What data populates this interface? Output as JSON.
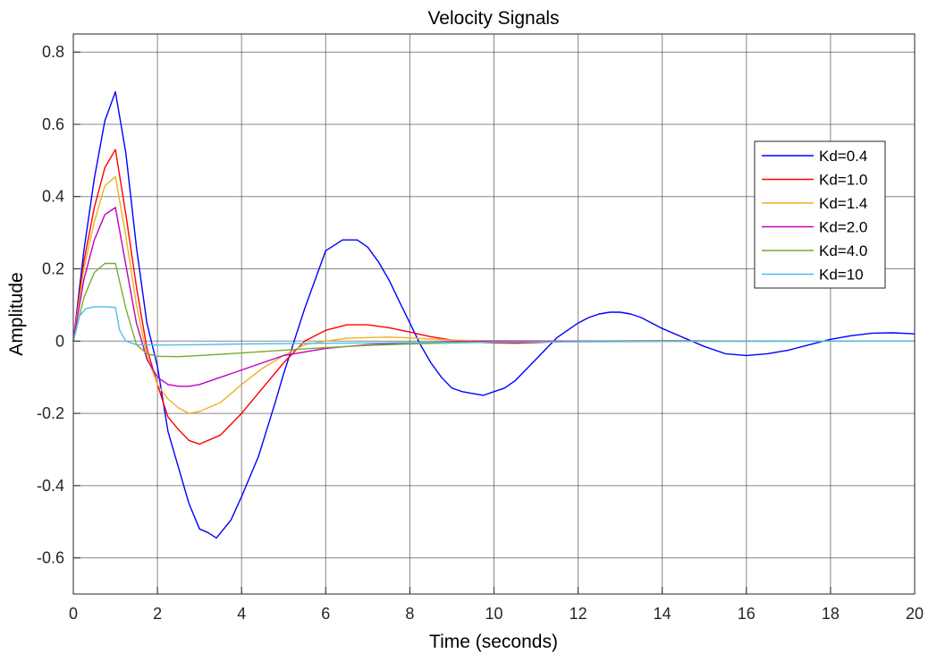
{
  "chart_data": {
    "type": "line",
    "title": "Velocity Signals",
    "xlabel": "Time (seconds)",
    "ylabel": "Amplitude",
    "xlim": [
      0,
      20
    ],
    "ylim": [
      -0.7,
      0.85
    ],
    "xticks": [
      0,
      2,
      4,
      6,
      8,
      10,
      12,
      14,
      16,
      18,
      20
    ],
    "yticks": [
      -0.6,
      -0.4,
      -0.2,
      0,
      0.2,
      0.4,
      0.6,
      0.8
    ],
    "grid": true,
    "legend_position": "top-right",
    "series": [
      {
        "name": "Kd=0.4",
        "color": "#0000ff",
        "points": [
          [
            0,
            0
          ],
          [
            0.25,
            0.25
          ],
          [
            0.5,
            0.45
          ],
          [
            0.75,
            0.61
          ],
          [
            1.0,
            0.69
          ],
          [
            1.25,
            0.52
          ],
          [
            1.5,
            0.26
          ],
          [
            1.75,
            0.05
          ],
          [
            2.0,
            -0.07
          ],
          [
            2.25,
            -0.25
          ],
          [
            2.5,
            -0.35
          ],
          [
            2.75,
            -0.45
          ],
          [
            3.0,
            -0.52
          ],
          [
            3.2,
            -0.53
          ],
          [
            3.4,
            -0.545
          ],
          [
            3.75,
            -0.495
          ],
          [
            4.0,
            -0.43
          ],
          [
            4.4,
            -0.32
          ],
          [
            4.8,
            -0.17
          ],
          [
            5.0,
            -0.09
          ],
          [
            5.25,
            0.0
          ],
          [
            5.5,
            0.09
          ],
          [
            5.75,
            0.17
          ],
          [
            6.0,
            0.25
          ],
          [
            6.4,
            0.28
          ],
          [
            6.75,
            0.28
          ],
          [
            7.0,
            0.26
          ],
          [
            7.25,
            0.22
          ],
          [
            7.5,
            0.17
          ],
          [
            7.75,
            0.11
          ],
          [
            8.0,
            0.05
          ],
          [
            8.25,
            -0.01
          ],
          [
            8.5,
            -0.06
          ],
          [
            8.75,
            -0.1
          ],
          [
            9.0,
            -0.13
          ],
          [
            9.25,
            -0.14
          ],
          [
            9.5,
            -0.145
          ],
          [
            9.75,
            -0.15
          ],
          [
            10.0,
            -0.14
          ],
          [
            10.25,
            -0.13
          ],
          [
            10.5,
            -0.11
          ],
          [
            10.75,
            -0.08
          ],
          [
            11.0,
            -0.05
          ],
          [
            11.25,
            -0.02
          ],
          [
            11.5,
            0.01
          ],
          [
            11.75,
            0.03
          ],
          [
            12.0,
            0.05
          ],
          [
            12.25,
            0.065
          ],
          [
            12.5,
            0.075
          ],
          [
            12.75,
            0.08
          ],
          [
            13.0,
            0.08
          ],
          [
            13.25,
            0.075
          ],
          [
            13.5,
            0.065
          ],
          [
            13.75,
            0.05
          ],
          [
            14.0,
            0.035
          ],
          [
            14.5,
            0.01
          ],
          [
            15.0,
            -0.015
          ],
          [
            15.5,
            -0.035
          ],
          [
            16.0,
            -0.04
          ],
          [
            16.5,
            -0.035
          ],
          [
            17.0,
            -0.025
          ],
          [
            17.5,
            -0.01
          ],
          [
            18.0,
            0.005
          ],
          [
            18.5,
            0.015
          ],
          [
            19.0,
            0.022
          ],
          [
            19.5,
            0.023
          ],
          [
            20.0,
            0.02
          ]
        ]
      },
      {
        "name": "Kd=1.0",
        "color": "#ff0000",
        "points": [
          [
            0,
            0
          ],
          [
            0.25,
            0.22
          ],
          [
            0.5,
            0.37
          ],
          [
            0.75,
            0.48
          ],
          [
            1.0,
            0.53
          ],
          [
            1.25,
            0.35
          ],
          [
            1.5,
            0.15
          ],
          [
            1.75,
            -0.02
          ],
          [
            2.0,
            -0.12
          ],
          [
            2.25,
            -0.21
          ],
          [
            2.5,
            -0.245
          ],
          [
            2.75,
            -0.275
          ],
          [
            3.0,
            -0.285
          ],
          [
            3.5,
            -0.26
          ],
          [
            4.0,
            -0.2
          ],
          [
            4.5,
            -0.13
          ],
          [
            5.0,
            -0.06
          ],
          [
            5.5,
            0.0
          ],
          [
            6.0,
            0.03
          ],
          [
            6.5,
            0.045
          ],
          [
            7.0,
            0.045
          ],
          [
            7.5,
            0.037
          ],
          [
            8.0,
            0.025
          ],
          [
            8.5,
            0.012
          ],
          [
            9.0,
            0.003
          ],
          [
            9.5,
            -0.003
          ],
          [
            10.0,
            -0.005
          ],
          [
            10.5,
            -0.006
          ],
          [
            11.0,
            -0.004
          ],
          [
            11.5,
            -0.002
          ],
          [
            12.0,
            0.0
          ],
          [
            14.0,
            0.001
          ],
          [
            16.0,
            0.0
          ],
          [
            20.0,
            0.0
          ]
        ]
      },
      {
        "name": "Kd=1.4",
        "color": "#edb120",
        "points": [
          [
            0,
            0
          ],
          [
            0.25,
            0.2
          ],
          [
            0.5,
            0.33
          ],
          [
            0.75,
            0.43
          ],
          [
            1.0,
            0.455
          ],
          [
            1.25,
            0.29
          ],
          [
            1.5,
            0.1
          ],
          [
            1.75,
            -0.04
          ],
          [
            2.0,
            -0.12
          ],
          [
            2.25,
            -0.16
          ],
          [
            2.5,
            -0.185
          ],
          [
            2.75,
            -0.2
          ],
          [
            3.0,
            -0.195
          ],
          [
            3.5,
            -0.17
          ],
          [
            4.0,
            -0.12
          ],
          [
            4.5,
            -0.075
          ],
          [
            5.0,
            -0.04
          ],
          [
            5.5,
            -0.01
          ],
          [
            6.0,
            0.0
          ],
          [
            6.5,
            0.008
          ],
          [
            7.0,
            0.01
          ],
          [
            7.5,
            0.011
          ],
          [
            8.0,
            0.009
          ],
          [
            8.5,
            0.006
          ],
          [
            9.0,
            0.003
          ],
          [
            10.0,
            0.001
          ],
          [
            12.0,
            0.0
          ],
          [
            20.0,
            0.0
          ]
        ]
      },
      {
        "name": "Kd=2.0",
        "color": "#bf00bf",
        "points": [
          [
            0,
            0
          ],
          [
            0.25,
            0.17
          ],
          [
            0.5,
            0.28
          ],
          [
            0.75,
            0.35
          ],
          [
            1.0,
            0.37
          ],
          [
            1.25,
            0.21
          ],
          [
            1.5,
            0.05
          ],
          [
            1.75,
            -0.05
          ],
          [
            2.0,
            -0.1
          ],
          [
            2.25,
            -0.12
          ],
          [
            2.5,
            -0.125
          ],
          [
            2.75,
            -0.125
          ],
          [
            3.0,
            -0.12
          ],
          [
            3.5,
            -0.1
          ],
          [
            4.0,
            -0.08
          ],
          [
            4.5,
            -0.06
          ],
          [
            5.0,
            -0.04
          ],
          [
            5.5,
            -0.03
          ],
          [
            6.0,
            -0.02
          ],
          [
            7.0,
            -0.01
          ],
          [
            8.0,
            -0.005
          ],
          [
            9.0,
            -0.002
          ],
          [
            10.0,
            0.0
          ],
          [
            20.0,
            0.0
          ]
        ]
      },
      {
        "name": "Kd=4.0",
        "color": "#77ac30",
        "points": [
          [
            0,
            0
          ],
          [
            0.25,
            0.12
          ],
          [
            0.5,
            0.19
          ],
          [
            0.75,
            0.215
          ],
          [
            1.0,
            0.215
          ],
          [
            1.25,
            0.09
          ],
          [
            1.5,
            -0.01
          ],
          [
            1.75,
            -0.035
          ],
          [
            2.0,
            -0.042
          ],
          [
            2.5,
            -0.043
          ],
          [
            3.0,
            -0.04
          ],
          [
            4.0,
            -0.033
          ],
          [
            5.0,
            -0.025
          ],
          [
            6.0,
            -0.018
          ],
          [
            7.0,
            -0.012
          ],
          [
            8.0,
            -0.008
          ],
          [
            9.0,
            -0.005
          ],
          [
            10.0,
            -0.003
          ],
          [
            12.0,
            -0.001
          ],
          [
            14.0,
            0.0
          ],
          [
            20.0,
            0.0
          ]
        ]
      },
      {
        "name": "Kd=10",
        "color": "#4dbeee",
        "points": [
          [
            0,
            0
          ],
          [
            0.15,
            0.07
          ],
          [
            0.3,
            0.09
          ],
          [
            0.5,
            0.095
          ],
          [
            0.75,
            0.095
          ],
          [
            1.0,
            0.093
          ],
          [
            1.1,
            0.03
          ],
          [
            1.25,
            0.0
          ],
          [
            1.5,
            -0.01
          ],
          [
            2.0,
            -0.011
          ],
          [
            3.0,
            -0.01
          ],
          [
            4.0,
            -0.008
          ],
          [
            6.0,
            -0.006
          ],
          [
            8.0,
            -0.004
          ],
          [
            10.0,
            -0.003
          ],
          [
            14.0,
            -0.001
          ],
          [
            20.0,
            0.0
          ]
        ]
      }
    ]
  }
}
